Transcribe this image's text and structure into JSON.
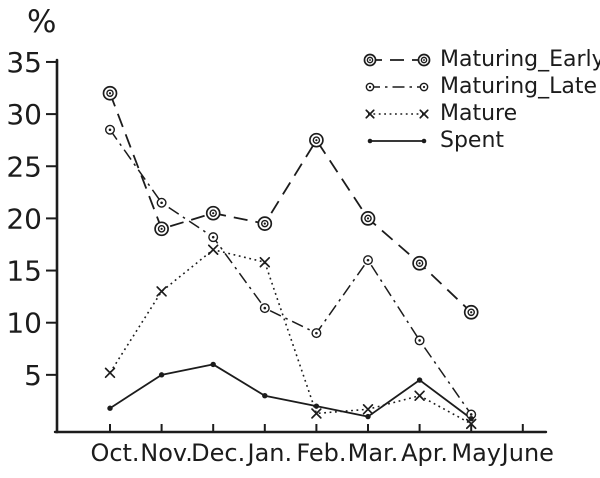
{
  "page": {
    "background": "#ffffff",
    "ink_color": "#1c1c1c"
  },
  "chart_data": {
    "type": "line",
    "title": "",
    "xlabel": "",
    "ylabel": "%",
    "categories": [
      "Oct.",
      "Nov.",
      "Dec.",
      "Jan.",
      "Feb.",
      "Mar.",
      "Apr.",
      "May",
      "June"
    ],
    "y_ticks": [
      5,
      10,
      15,
      20,
      25,
      30,
      35
    ],
    "ylim": [
      0,
      35
    ],
    "grid": false,
    "legend_position": "top-right",
    "series": [
      {
        "name": "Maturing_Early",
        "marker": "double-circle",
        "line_style": "dashed",
        "values": [
          32,
          19,
          20.5,
          19.5,
          27.5,
          20,
          15.7,
          11,
          null
        ]
      },
      {
        "name": "Maturing_Late",
        "marker": "circle-dot",
        "line_style": "dash-dot",
        "values": [
          28.5,
          21.5,
          18.2,
          11.4,
          9,
          16,
          8.3,
          1.2,
          null
        ]
      },
      {
        "name": "Mature",
        "marker": "x-cross",
        "line_style": "dotted",
        "values": [
          5.2,
          13,
          17,
          15.8,
          1.3,
          1.7,
          3,
          0.3,
          null
        ]
      },
      {
        "name": "Spent",
        "marker": "dot",
        "line_style": "solid",
        "values": [
          1.8,
          5,
          6,
          3,
          2,
          1,
          4.5,
          0.8,
          null
        ]
      }
    ]
  }
}
